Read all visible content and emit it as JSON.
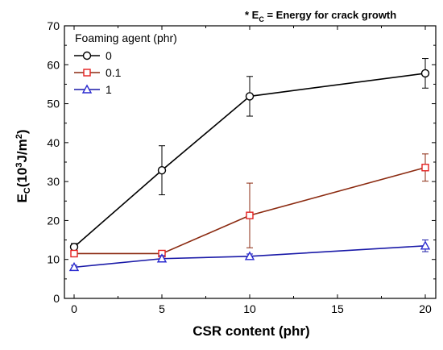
{
  "chart_data": {
    "type": "line",
    "annotation": {
      "prefix": "* E",
      "sub": "C",
      "suffix": " = Energy for crack growth"
    },
    "xlabel": "CSR content (phr)",
    "ylabel": {
      "main": "E",
      "sub": "C",
      "paren_open": "(10",
      "sup1": "3",
      "unit": "J/m",
      "sup2": "2",
      "paren_close": ")"
    },
    "xlim": [
      0,
      20
    ],
    "ylim": [
      0,
      70
    ],
    "xticks": [
      0,
      5,
      10,
      15,
      20
    ],
    "yticks": [
      0,
      10,
      20,
      30,
      40,
      50,
      60,
      70
    ],
    "legend_title": "Foaming agent (phr)",
    "legend_position": "top-left",
    "series": [
      {
        "name": "0",
        "marker": "circle",
        "line_color": "#000000",
        "marker_color": "#000000",
        "x": [
          0,
          5,
          10,
          20
        ],
        "y": [
          13.2,
          32.9,
          51.9,
          57.8
        ],
        "err": [
          0.9,
          6.3,
          5.1,
          3.8
        ]
      },
      {
        "name": "0.1",
        "marker": "square",
        "line_color": "#8b2a10",
        "marker_color": "#e32020",
        "x": [
          0,
          5,
          10,
          20
        ],
        "y": [
          11.5,
          11.5,
          21.3,
          33.6
        ],
        "err": [
          0.3,
          0.3,
          8.3,
          3.5
        ]
      },
      {
        "name": "1",
        "marker": "triangle",
        "line_color": "#1a1aa8",
        "marker_color": "#2a2ad0",
        "x": [
          0,
          5,
          10,
          20
        ],
        "y": [
          8.0,
          10.2,
          10.8,
          13.5
        ],
        "err": [
          0.5,
          0.8,
          0.6,
          1.5
        ]
      }
    ]
  }
}
